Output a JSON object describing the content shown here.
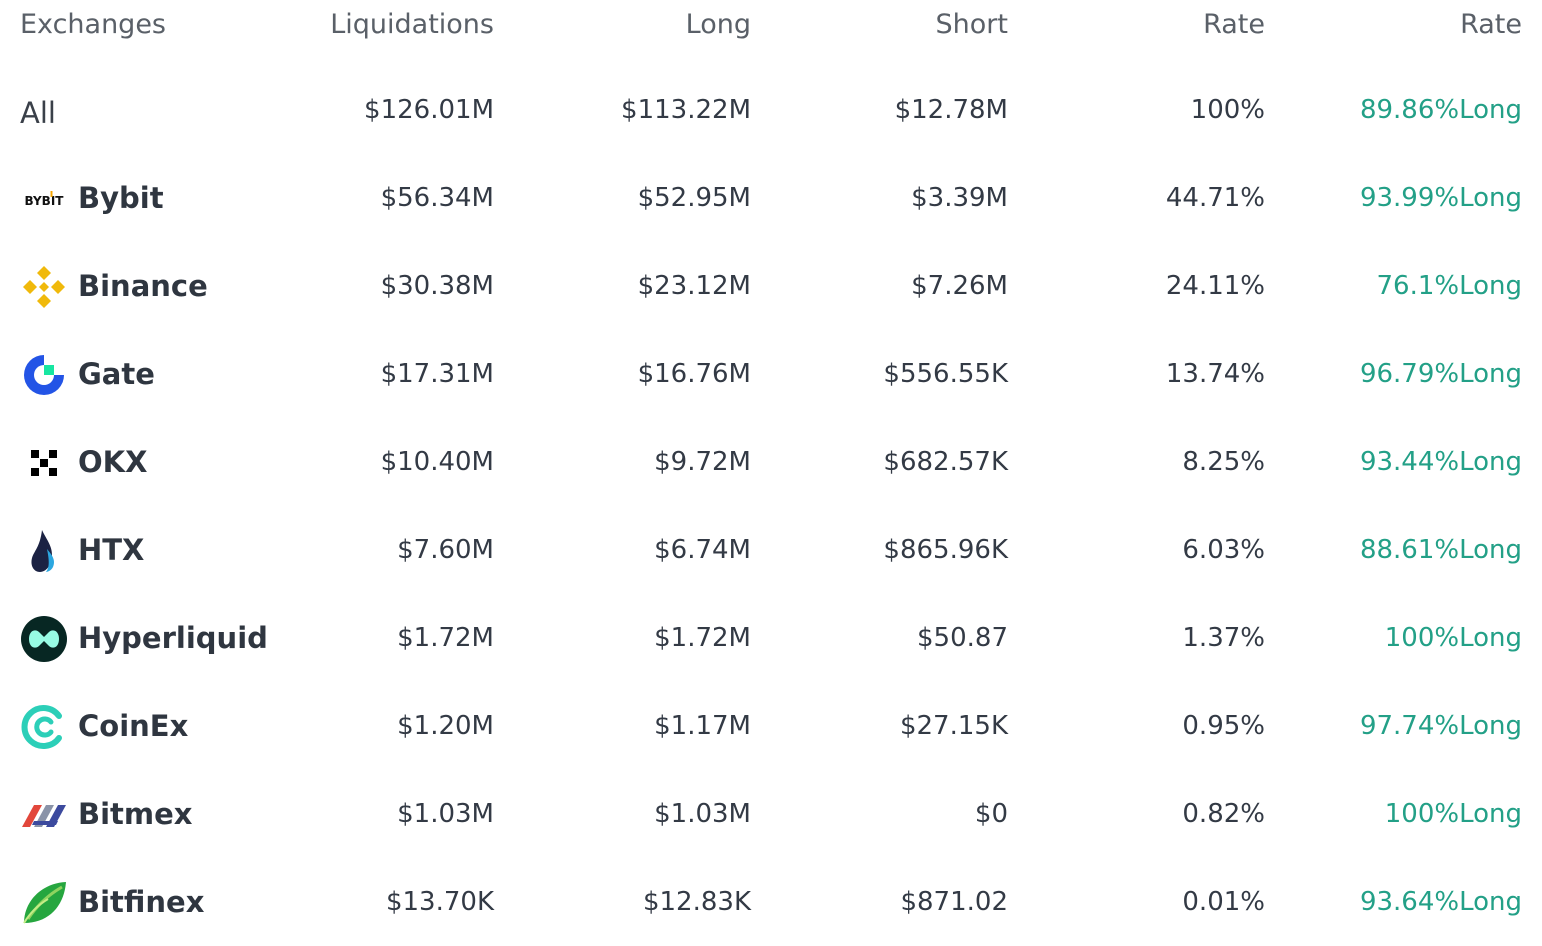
{
  "header": {
    "exchanges": "Exchanges",
    "liquidations": "Liquidations",
    "long": "Long",
    "short": "Short",
    "rate": "Rate",
    "rate2": "Rate"
  },
  "rows": [
    {
      "name": "All",
      "logo": "",
      "liquidations": "$126.01M",
      "long": "$113.22M",
      "short": "$12.78M",
      "rate": "100%",
      "long_rate": "89.86%Long"
    },
    {
      "name": "Bybit",
      "logo": "bybit-logo-icon",
      "liquidations": "$56.34M",
      "long": "$52.95M",
      "short": "$3.39M",
      "rate": "44.71%",
      "long_rate": "93.99%Long"
    },
    {
      "name": "Binance",
      "logo": "binance-logo-icon",
      "liquidations": "$30.38M",
      "long": "$23.12M",
      "short": "$7.26M",
      "rate": "24.11%",
      "long_rate": "76.1%Long"
    },
    {
      "name": "Gate",
      "logo": "gate-logo-icon",
      "liquidations": "$17.31M",
      "long": "$16.76M",
      "short": "$556.55K",
      "rate": "13.74%",
      "long_rate": "96.79%Long"
    },
    {
      "name": "OKX",
      "logo": "okx-logo-icon",
      "liquidations": "$10.40M",
      "long": "$9.72M",
      "short": "$682.57K",
      "rate": "8.25%",
      "long_rate": "93.44%Long"
    },
    {
      "name": "HTX",
      "logo": "htx-logo-icon",
      "liquidations": "$7.60M",
      "long": "$6.74M",
      "short": "$865.96K",
      "rate": "6.03%",
      "long_rate": "88.61%Long"
    },
    {
      "name": "Hyperliquid",
      "logo": "hyperliquid-logo-icon",
      "liquidations": "$1.72M",
      "long": "$1.72M",
      "short": "$50.87",
      "rate": "1.37%",
      "long_rate": "100%Long"
    },
    {
      "name": "CoinEx",
      "logo": "coinex-logo-icon",
      "liquidations": "$1.20M",
      "long": "$1.17M",
      "short": "$27.15K",
      "rate": "0.95%",
      "long_rate": "97.74%Long"
    },
    {
      "name": "Bitmex",
      "logo": "bitmex-logo-icon",
      "liquidations": "$1.03M",
      "long": "$1.03M",
      "short": "$0",
      "rate": "0.82%",
      "long_rate": "100%Long"
    },
    {
      "name": "Bitfinex",
      "logo": "bitfinex-logo-icon",
      "liquidations": "$13.70K",
      "long": "$12.83K",
      "short": "$871.02",
      "rate": "0.01%",
      "long_rate": "93.64%Long"
    }
  ],
  "logo_text": {
    "bybit": "BYBIT"
  },
  "colors": {
    "long_green": "#23a087",
    "text": "#333a45",
    "header": "#5a6068"
  }
}
